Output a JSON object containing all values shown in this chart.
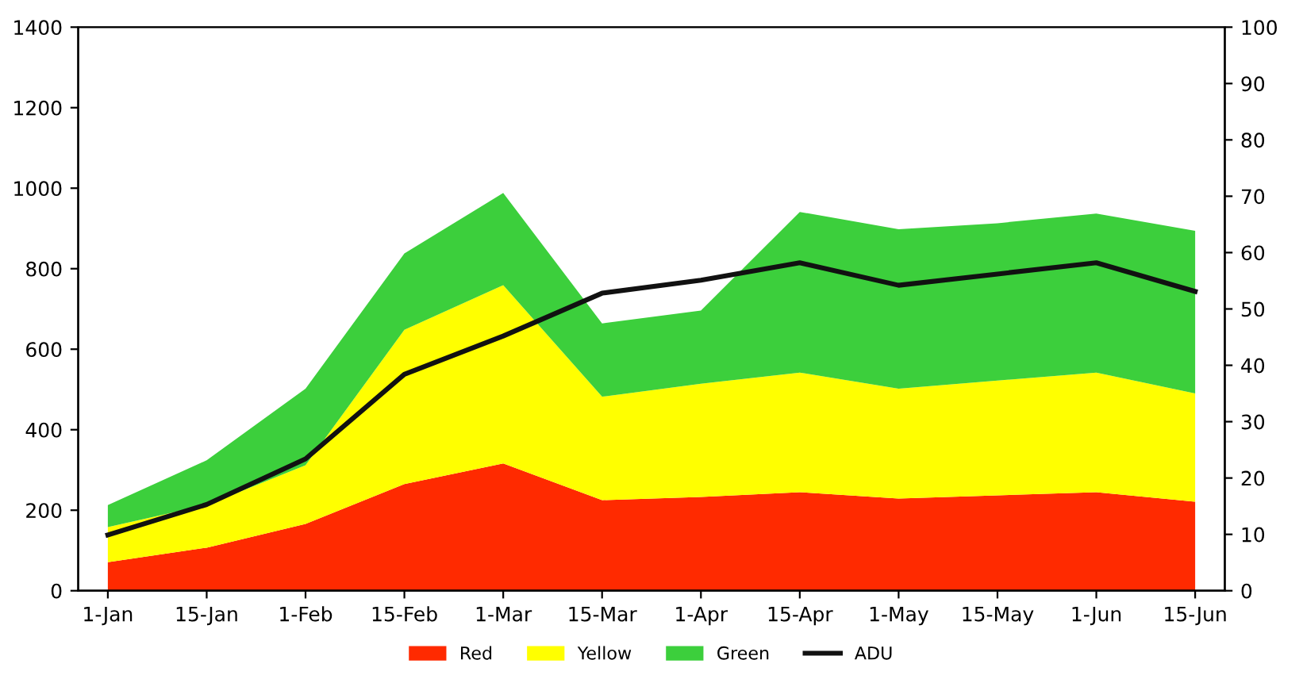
{
  "chart_data": {
    "type": "area",
    "stacked": true,
    "categories": [
      "1-Jan",
      "15-Jan",
      "1-Feb",
      "15-Feb",
      "1-Mar",
      "15-Mar",
      "1-Apr",
      "15-Apr",
      "1-May",
      "15-May",
      "1-Jun",
      "15-Jun"
    ],
    "series": [
      {
        "name": "Red",
        "color": "#ff2a00",
        "values": [
          71,
          107,
          166,
          265,
          316,
          225,
          233,
          245,
          229,
          237,
          245,
          221
        ]
      },
      {
        "name": "Yellow",
        "color": "#ffff00",
        "values": [
          87,
          106,
          146,
          383,
          443,
          257,
          281,
          297,
          273,
          285,
          297,
          269
        ]
      },
      {
        "name": "Green",
        "color": "#3ccf3c",
        "values": [
          55,
          111,
          190,
          190,
          229,
          182,
          182,
          399,
          396,
          391,
          395,
          404
        ]
      },
      {
        "name": "ADU",
        "type": "line",
        "axis": "y2",
        "color": "#111111",
        "values": [
          9.9,
          15.3,
          23.4,
          38.4,
          45.2,
          52.8,
          55.1,
          58.2,
          54.2,
          56.2,
          58.2,
          53.1
        ]
      }
    ],
    "ylim": [
      0,
      1400
    ],
    "yticks": [
      0,
      200,
      400,
      600,
      800,
      1000,
      1200,
      1400
    ],
    "y2lim": [
      0,
      100
    ],
    "y2ticks": [
      0,
      10,
      20,
      30,
      40,
      50,
      60,
      70,
      80,
      90,
      100
    ],
    "legend": "bottom",
    "grid": false,
    "marker": "none",
    "line_style": "solid"
  }
}
